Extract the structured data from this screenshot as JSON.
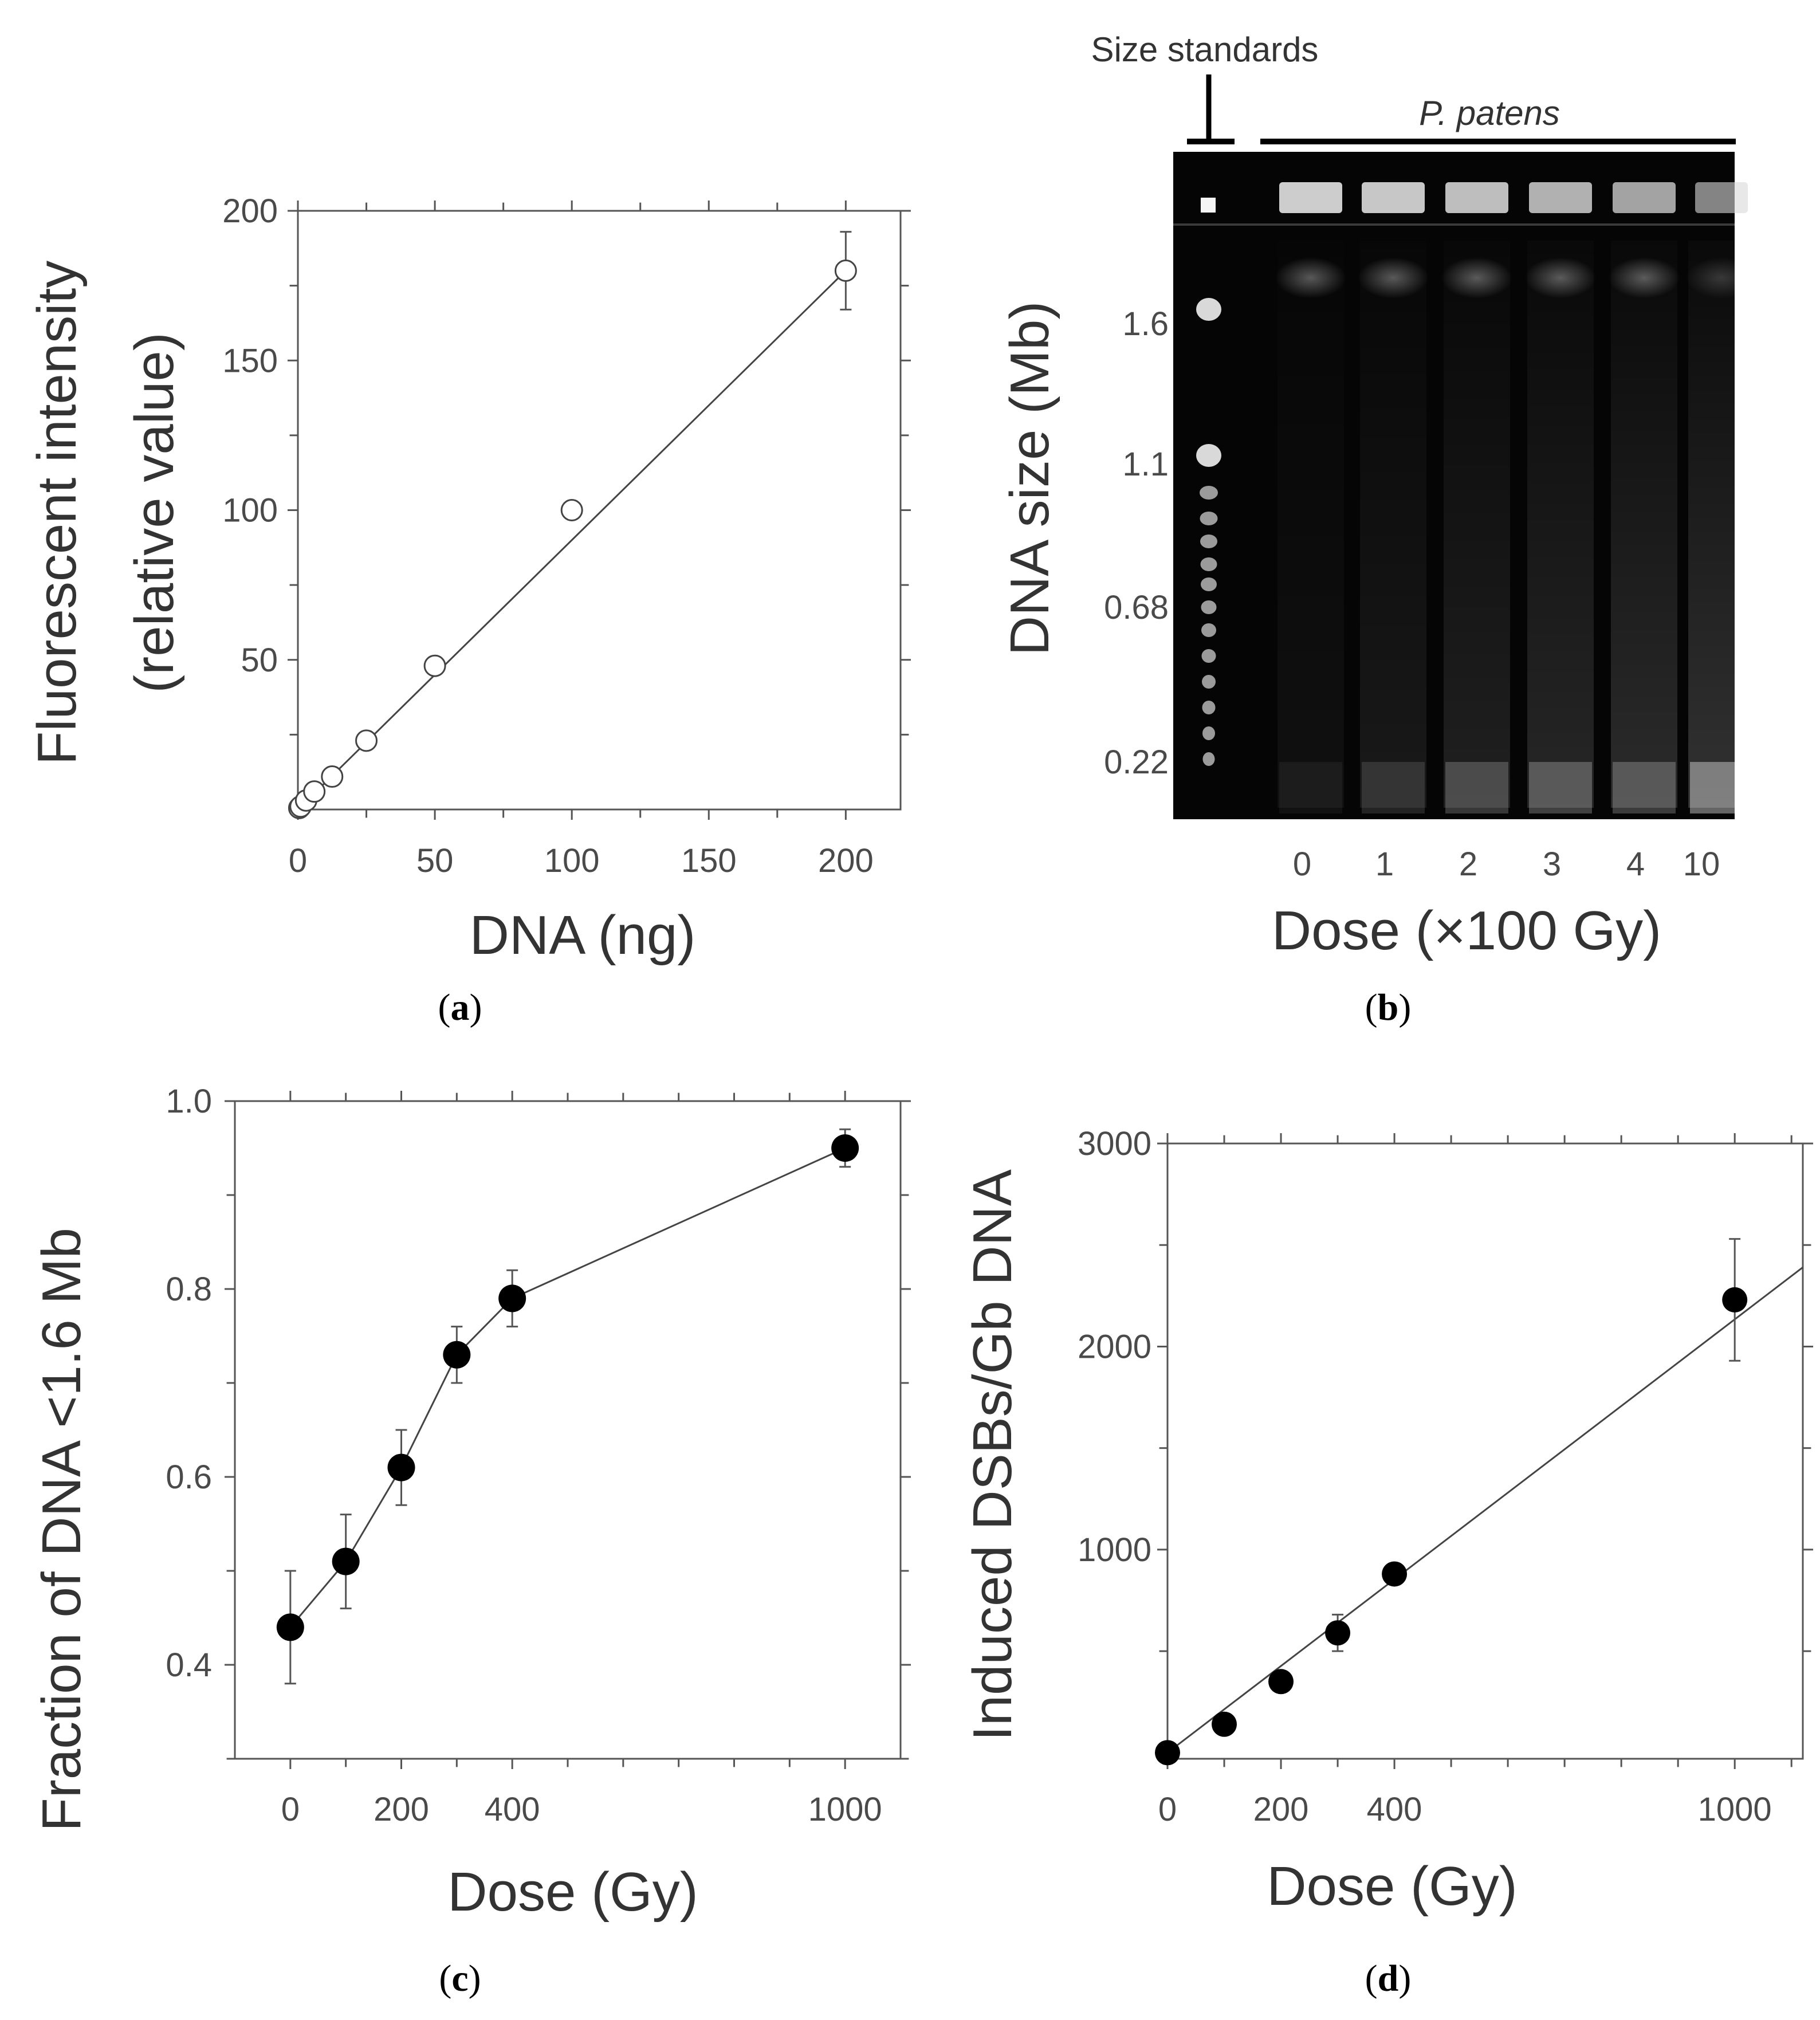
{
  "chart_data": [
    {
      "panel": "a",
      "type": "scatter",
      "marker": "open-circle",
      "fit_line": true,
      "xlabel": "DNA (ng)",
      "ylabel_line1": "Fluorescent intensity",
      "ylabel_line2": "(relative value)",
      "xlim": [
        0,
        220
      ],
      "ylim": [
        0,
        200
      ],
      "x_ticks": [
        0,
        50,
        100,
        150,
        200
      ],
      "y_ticks": [
        50,
        100,
        150,
        200
      ],
      "x_tick_labels": [
        "0",
        "50",
        "100",
        "150",
        "200"
      ],
      "y_tick_labels": [
        "50",
        "100",
        "150",
        "200"
      ],
      "points": [
        {
          "x": 0.5,
          "y": 0.5,
          "err": 1
        },
        {
          "x": 1,
          "y": 1,
          "err": 1
        },
        {
          "x": 3,
          "y": 3,
          "err": 1
        },
        {
          "x": 6,
          "y": 6,
          "err": 1
        },
        {
          "x": 12.5,
          "y": 11,
          "err": 1
        },
        {
          "x": 25,
          "y": 23,
          "err": 2
        },
        {
          "x": 50,
          "y": 48,
          "err": 2
        },
        {
          "x": 100,
          "y": 100,
          "err": 2
        },
        {
          "x": 200,
          "y": 180,
          "err": 13
        }
      ],
      "fit": [
        [
          0,
          0
        ],
        [
          200,
          180
        ]
      ]
    },
    {
      "panel": "c",
      "type": "line",
      "marker": "filled-circle",
      "xlabel": "Dose (Gy)",
      "ylabel": "Fraction of DNA <1.6 Mb",
      "xlim": [
        -100,
        1100
      ],
      "ylim": [
        0.3,
        1.0
      ],
      "x_ticks": [
        0,
        200,
        400,
        1000
      ],
      "y_ticks": [
        0.4,
        0.6,
        0.8,
        1.0
      ],
      "x_tick_labels": [
        "0",
        "200",
        "400",
        "1000"
      ],
      "y_tick_labels": [
        "0.4",
        "0.6",
        "0.8",
        "1.0"
      ],
      "points": [
        {
          "x": 0,
          "y": 0.44,
          "err": 0.06
        },
        {
          "x": 100,
          "y": 0.51,
          "err": 0.05
        },
        {
          "x": 200,
          "y": 0.61,
          "err": 0.04
        },
        {
          "x": 300,
          "y": 0.73,
          "err": 0.03
        },
        {
          "x": 400,
          "y": 0.79,
          "err": 0.03
        },
        {
          "x": 1000,
          "y": 0.95,
          "err": 0.02
        }
      ]
    },
    {
      "panel": "d",
      "type": "scatter",
      "marker": "filled-circle",
      "fit_line": true,
      "xlabel": "Dose (Gy)",
      "ylabel": "Induced DSBs/Gb DNA",
      "xlim": [
        0,
        1120
      ],
      "ylim": [
        -30,
        3000
      ],
      "x_ticks": [
        0,
        200,
        400,
        1000
      ],
      "y_ticks": [
        1000,
        2000,
        3000
      ],
      "x_tick_labels": [
        "0",
        "200",
        "400",
        "1000"
      ],
      "y_tick_labels": [
        "1000",
        "2000",
        "3000"
      ],
      "points": [
        {
          "x": 0,
          "y": 0,
          "err": 0
        },
        {
          "x": 100,
          "y": 140,
          "err": 0
        },
        {
          "x": 200,
          "y": 350,
          "err": 40
        },
        {
          "x": 300,
          "y": 590,
          "err": 90
        },
        {
          "x": 400,
          "y": 880,
          "err": 30
        },
        {
          "x": 1000,
          "y": 2230,
          "err": 300
        }
      ],
      "fit": [
        [
          0,
          0
        ],
        [
          1120,
          2390
        ]
      ]
    }
  ],
  "gel": {
    "panel": "b",
    "header_standards": "Size standards",
    "header_sample": "P. patens",
    "ylabel": "DNA size (Mb)",
    "xlabel": "Dose (×100 Gy)",
    "size_labels": [
      "1.6",
      "1.1",
      "0.68",
      "0.22"
    ],
    "lane_labels": [
      "0",
      "1",
      "2",
      "3",
      "4",
      "10"
    ]
  },
  "panel_labels": {
    "a": {
      "open": "(",
      "letter": "a",
      "close": ")"
    },
    "b": {
      "open": "(",
      "letter": "b",
      "close": ")"
    },
    "c": {
      "open": "(",
      "letter": "c",
      "close": ")"
    },
    "d": {
      "open": "(",
      "letter": "d",
      "close": ")"
    }
  }
}
